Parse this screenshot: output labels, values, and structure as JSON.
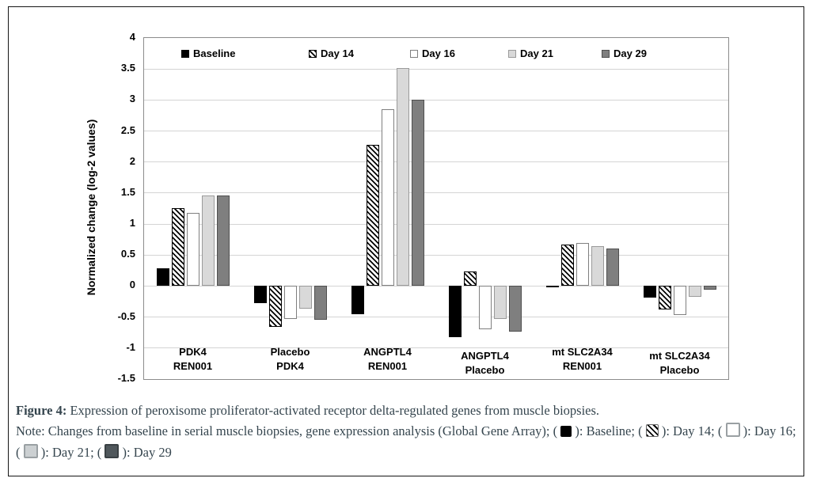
{
  "figure": {
    "caption": {
      "label": "Figure 4:",
      "text": " Expression of peroxisome proliferator-activated receptor delta-regulated genes from muscle biopsies.",
      "note_parts": [
        {
          "text": "Note: Changes from baseline in serial muscle biopsies, gene expression analysis (Global Gene Array); ( "
        },
        {
          "swatch": "baseline"
        },
        {
          "text": " ): Baseline; ( "
        },
        {
          "swatch": "day14"
        },
        {
          "text": " ): Day 14; ( "
        },
        {
          "swatch": "day16"
        },
        {
          "text": " ): Day 16; ( "
        },
        {
          "swatch": "day21"
        },
        {
          "text": " ): Day 21; ( "
        },
        {
          "swatch": "day29"
        },
        {
          "text": " ): Day 29"
        }
      ]
    }
  },
  "chart_data": {
    "type": "bar",
    "title": "",
    "xlabel": "",
    "ylabel": "Normalized change (log-2 values)",
    "ylim": [
      -1.5,
      4
    ],
    "ytick_step": 0.5,
    "grid": true,
    "legend_position": "top-inside",
    "categories": [
      [
        "PDK4",
        "REN001"
      ],
      [
        "Placebo",
        "PDK4"
      ],
      [
        "ANGPTL4",
        "REN001"
      ],
      [
        "ANGPTL4",
        "Placebo"
      ],
      [
        "mt SLC2A34",
        "REN001"
      ],
      [
        "mt SLC2A34",
        "Placebo"
      ]
    ],
    "series": [
      {
        "name": "Baseline",
        "style": "solid-black",
        "fill": "#000000",
        "values": [
          0.29,
          -0.28,
          -0.45,
          -0.83,
          -0.02,
          -0.18
        ]
      },
      {
        "name": "Day 14",
        "style": "hatch",
        "fill": "diagonal-hatch",
        "values": [
          1.26,
          -0.66,
          2.28,
          0.23,
          0.67,
          -0.38
        ]
      },
      {
        "name": "Day 16",
        "style": "white",
        "fill": "#ffffff",
        "values": [
          1.18,
          -0.53,
          2.85,
          -0.7,
          0.7,
          -0.46
        ]
      },
      {
        "name": "Day 21",
        "style": "light-gray",
        "fill": "#d9d9d9",
        "values": [
          1.46,
          -0.37,
          3.52,
          -0.53,
          0.65,
          -0.17
        ]
      },
      {
        "name": "Day 29",
        "style": "dark-gray",
        "fill": "#7f7f7f",
        "values": [
          1.46,
          -0.54,
          3.01,
          -0.73,
          0.61,
          -0.06
        ]
      }
    ],
    "colors": {
      "grid": "#d4d4d4",
      "plot_frame": "#8c8c8c",
      "outer_border": "#151515",
      "caption_text": "#35454e"
    }
  }
}
